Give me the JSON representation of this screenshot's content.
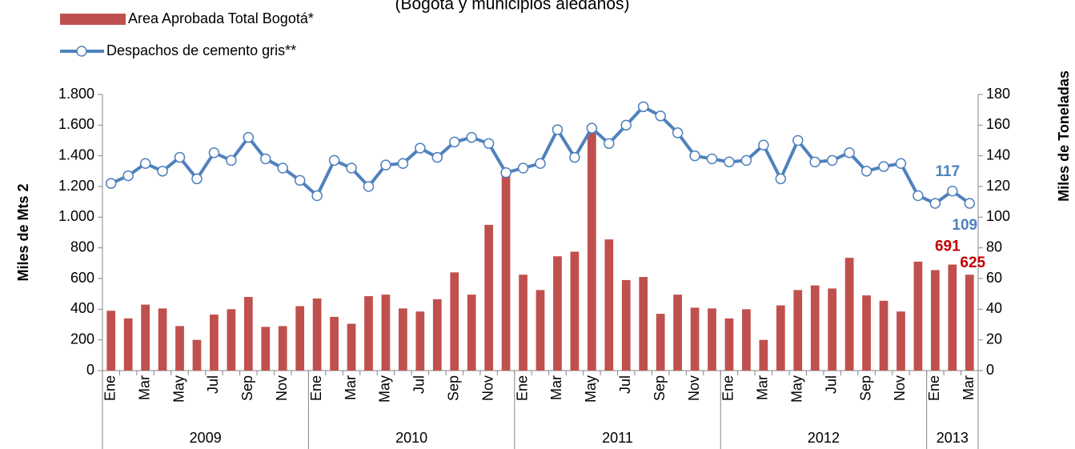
{
  "chart_data": {
    "type": "bar_line",
    "subtitle": "(Bogota y municipios aledaños)",
    "categories": [
      "Ene",
      null,
      "Mar",
      null,
      "May",
      null,
      "Jul",
      null,
      "Sep",
      null,
      "Nov",
      null,
      "Ene",
      null,
      "Mar",
      null,
      "May",
      null,
      "Jul",
      null,
      "Sep",
      null,
      "Nov",
      null,
      "Ene",
      null,
      "Mar",
      null,
      "May",
      null,
      "Jul",
      null,
      "Sep",
      null,
      "Nov",
      null,
      "Ene",
      null,
      "Mar",
      null,
      "May",
      null,
      "Jul",
      null,
      "Sep",
      null,
      "Nov",
      null,
      "Ene",
      null,
      "Mar"
    ],
    "groups": [
      {
        "label": "2009",
        "span": 12
      },
      {
        "label": "2010",
        "span": 12
      },
      {
        "label": "2011",
        "span": 12
      },
      {
        "label": "2012",
        "span": 12
      },
      {
        "label": "2013",
        "span": 3
      }
    ],
    "ylabel": "Miles de Mts 2",
    "y2label": "Miles de Toneladas",
    "ylim": [
      0,
      1800
    ],
    "yticks": [
      0,
      200,
      400,
      600,
      800,
      {
        "value": 1000,
        "label": "1.000"
      },
      {
        "value": 1200,
        "label": "1.200"
      },
      {
        "value": 1400,
        "label": "1.400"
      },
      {
        "value": 1600,
        "label": "1.600"
      },
      {
        "value": 1800,
        "label": "1.800"
      }
    ],
    "y2lim": [
      0,
      180
    ],
    "y2ticks": [
      0,
      20,
      40,
      60,
      80,
      100,
      120,
      140,
      160,
      180
    ],
    "grid": false,
    "legend": "top-left",
    "series": [
      {
        "name": "Area Aprobada Total Bogotá*",
        "type": "bar",
        "color": "#c0504d",
        "values": [
          390,
          340,
          430,
          405,
          290,
          200,
          365,
          400,
          480,
          285,
          290,
          420,
          470,
          350,
          305,
          485,
          495,
          405,
          385,
          465,
          640,
          495,
          950,
          1290,
          625,
          525,
          745,
          775,
          1550,
          855,
          590,
          610,
          370,
          495,
          410,
          405,
          340,
          400,
          200,
          425,
          525,
          555,
          535,
          735,
          490,
          455,
          385,
          710,
          655,
          691,
          625
        ],
        "value_labels": [
          null,
          null,
          null,
          null,
          null,
          null,
          null,
          null,
          null,
          null,
          null,
          null,
          null,
          null,
          null,
          null,
          null,
          null,
          null,
          null,
          null,
          null,
          null,
          null,
          null,
          null,
          null,
          null,
          null,
          null,
          null,
          null,
          null,
          null,
          null,
          null,
          null,
          null,
          null,
          null,
          null,
          null,
          null,
          null,
          null,
          null,
          null,
          null,
          null,
          "691",
          "625"
        ]
      },
      {
        "name": "Despachos de cemento gris**",
        "type": "line",
        "axis": "y2",
        "color": "#4f81bd",
        "values": [
          122,
          127,
          135,
          130,
          139,
          125,
          142,
          137,
          152,
          138,
          132,
          124,
          114,
          137,
          132,
          120,
          134,
          135,
          145,
          139,
          149,
          152,
          148,
          129,
          132,
          135,
          157,
          139,
          158,
          148,
          160,
          172,
          166,
          155,
          140,
          138,
          136,
          137,
          147,
          125,
          150,
          136,
          137,
          142,
          130,
          133,
          135,
          114,
          109,
          117,
          109
        ],
        "value_labels": [
          null,
          null,
          null,
          null,
          null,
          null,
          null,
          null,
          null,
          null,
          null,
          null,
          null,
          null,
          null,
          null,
          null,
          null,
          null,
          null,
          null,
          null,
          null,
          null,
          null,
          null,
          null,
          null,
          null,
          null,
          null,
          null,
          null,
          null,
          null,
          null,
          null,
          null,
          null,
          null,
          null,
          null,
          null,
          null,
          null,
          null,
          null,
          null,
          null,
          "117",
          "109"
        ]
      }
    ]
  }
}
